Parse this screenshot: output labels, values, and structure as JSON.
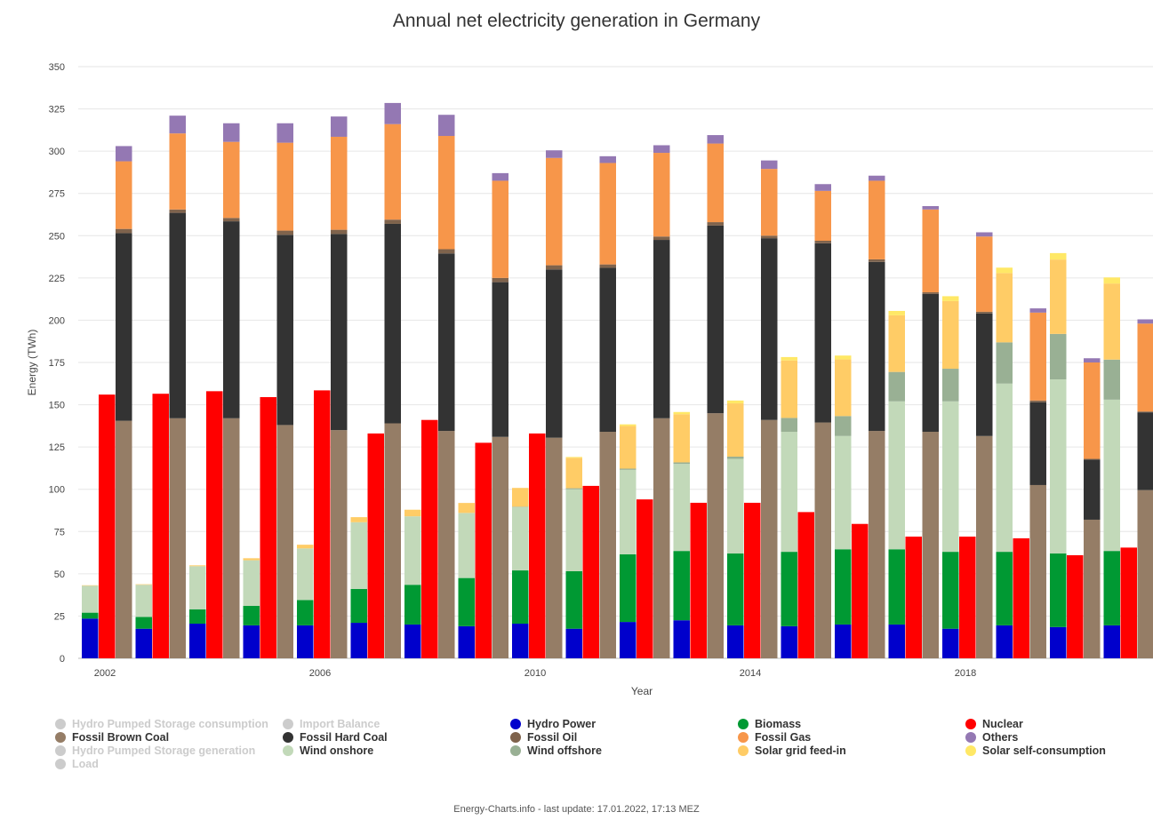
{
  "title": "Annual net electricity generation in Germany",
  "footer": "Energy-Charts.info - last update: 17.01.2022, 17:13 MEZ",
  "chart_data": {
    "type": "bar",
    "title": "Annual net electricity generation in Germany",
    "xlabel": "Year",
    "ylabel": "Energy (TWh)",
    "ylim": [
      0,
      350
    ],
    "yticks": [
      0,
      25,
      50,
      75,
      100,
      125,
      150,
      175,
      200,
      225,
      250,
      275,
      300,
      325,
      350
    ],
    "x_tick_labels": [
      "2002",
      "2006",
      "2010",
      "2014",
      "2018"
    ],
    "x_tick_years": [
      2002,
      2006,
      2010,
      2014,
      2018
    ],
    "grid": true,
    "legend_position": "bottom",
    "years": [
      2002,
      2003,
      2004,
      2005,
      2006,
      2007,
      2008,
      2009,
      2010,
      2011,
      2012,
      2013,
      2014,
      2015,
      2016,
      2017,
      2018,
      2019,
      2020,
      2021
    ],
    "stacks": [
      {
        "name": "renewables",
        "series": [
          "Hydro Power",
          "Biomass",
          "Wind onshore",
          "Wind offshore",
          "Solar grid feed-in",
          "Solar self-consumption"
        ]
      },
      {
        "name": "nuclear",
        "series": [
          "Nuclear"
        ]
      },
      {
        "name": "fossil",
        "series": [
          "Fossil Brown Coal",
          "Fossil Hard Coal",
          "Fossil Oil",
          "Fossil Gas",
          "Others"
        ]
      }
    ],
    "series": [
      {
        "name": "Hydro Power",
        "color": "#0000cc",
        "values": [
          23.5,
          17.5,
          20.5,
          19.5,
          19.5,
          21,
          20,
          19,
          20.5,
          17.5,
          21.5,
          22.5,
          19.5,
          19,
          20,
          20,
          17.5,
          19.5,
          18.5,
          19.5
        ]
      },
      {
        "name": "Biomass",
        "color": "#009933",
        "values": [
          3.5,
          7,
          8.5,
          11.5,
          15,
          20,
          23.5,
          28.5,
          31.5,
          34,
          40,
          41,
          42.5,
          44,
          44.5,
          44.5,
          45.5,
          43.5,
          43.5,
          44
        ]
      },
      {
        "name": "Wind onshore",
        "color": "#c2d9b9",
        "values": [
          16,
          19,
          25.5,
          27,
          30.5,
          39.5,
          40.5,
          38.5,
          37.5,
          48.5,
          50,
          51.5,
          56,
          71,
          67,
          87.5,
          89,
          99.5,
          103,
          89.5
        ]
      },
      {
        "name": "Wind offshore",
        "color": "#99b094",
        "values": [
          0,
          0,
          0,
          0,
          0,
          0,
          0,
          0,
          0.2,
          0.6,
          0.7,
          0.9,
          1.3,
          8.2,
          11.8,
          17.4,
          19.3,
          24.4,
          26.9,
          23.7
        ]
      },
      {
        "name": "Solar grid feed-in",
        "color": "#ffcc66",
        "values": [
          0.2,
          0.3,
          0.5,
          1.2,
          2.2,
          3,
          3.9,
          5.9,
          11.1,
          18,
          25.2,
          28.5,
          31.5,
          34,
          33.5,
          33.5,
          40,
          41,
          44,
          45
        ]
      },
      {
        "name": "Solar self-consumption",
        "color": "#ffe866",
        "values": [
          0,
          0,
          0,
          0,
          0,
          0,
          0,
          0,
          0,
          0.5,
          1,
          1.3,
          1.7,
          2,
          2.3,
          2.6,
          2.9,
          3.2,
          3.8,
          3.6
        ]
      },
      {
        "name": "Nuclear",
        "color": "#ff0000",
        "values": [
          156,
          156.5,
          158,
          154.5,
          158.5,
          133,
          141,
          127.5,
          133,
          102,
          94,
          92,
          92,
          86.5,
          79.5,
          72,
          72,
          71,
          61,
          65.5
        ]
      },
      {
        "name": "Fossil Brown Coal",
        "color": "#957d66",
        "values": [
          140.5,
          142,
          142,
          138,
          135,
          139,
          134.5,
          131,
          130.5,
          134,
          142,
          145,
          141,
          139.5,
          134.5,
          134,
          131.5,
          102.5,
          82,
          99.5
        ]
      },
      {
        "name": "Fossil Hard Coal",
        "color": "#333333",
        "values": [
          111,
          121.5,
          116.5,
          112.5,
          116,
          118,
          105,
          91.5,
          99.5,
          97,
          105.5,
          111,
          107.5,
          106,
          100,
          81.5,
          72.5,
          49,
          35.5,
          46
        ]
      },
      {
        "name": "Fossil Oil",
        "color": "#7f634c",
        "values": [
          2.5,
          2,
          2,
          2.5,
          2.5,
          2.5,
          2.5,
          2.5,
          2.5,
          2,
          2,
          2,
          1.5,
          1.5,
          1.5,
          1,
          1,
          1,
          0.5,
          0.5
        ]
      },
      {
        "name": "Fossil Gas",
        "color": "#f7964a",
        "values": [
          40,
          45,
          45,
          52,
          55,
          56.5,
          67,
          57.5,
          63.5,
          60,
          49.5,
          46.5,
          39.5,
          29.5,
          46.5,
          49,
          44.5,
          52,
          57,
          52
        ]
      },
      {
        "name": "Others",
        "color": "#9478b3",
        "values": [
          9,
          10.5,
          11,
          11.5,
          12,
          12.5,
          12.5,
          4.5,
          4.5,
          4,
          4.5,
          5,
          5,
          4,
          3,
          2,
          2.5,
          2.5,
          2.5,
          2.5
        ]
      }
    ],
    "legend": [
      {
        "label": "Hydro Pumped Storage consumption",
        "color": "#cccccc",
        "visible": false
      },
      {
        "label": "Import Balance",
        "color": "#cccccc",
        "visible": false
      },
      {
        "label": "Hydro Power",
        "color": "#0000cc",
        "visible": true
      },
      {
        "label": "Biomass",
        "color": "#009933",
        "visible": true
      },
      {
        "label": "Nuclear",
        "color": "#ff0000",
        "visible": true
      },
      {
        "label": "Fossil Brown Coal",
        "color": "#957d66",
        "visible": true
      },
      {
        "label": "Fossil Hard Coal",
        "color": "#333333",
        "visible": true
      },
      {
        "label": "Fossil Oil",
        "color": "#7f634c",
        "visible": true
      },
      {
        "label": "Fossil Gas",
        "color": "#f7964a",
        "visible": true
      },
      {
        "label": "Others",
        "color": "#9478b3",
        "visible": true
      },
      {
        "label": "Hydro Pumped Storage generation",
        "color": "#cccccc",
        "visible": false
      },
      {
        "label": "Wind onshore",
        "color": "#c2d9b9",
        "visible": true
      },
      {
        "label": "Wind offshore",
        "color": "#99b094",
        "visible": true
      },
      {
        "label": "Solar grid feed-in",
        "color": "#ffcc66",
        "visible": true
      },
      {
        "label": "Solar self-consumption",
        "color": "#ffe866",
        "visible": true
      },
      {
        "label": "Load",
        "color": "#cccccc",
        "visible": false
      }
    ]
  }
}
